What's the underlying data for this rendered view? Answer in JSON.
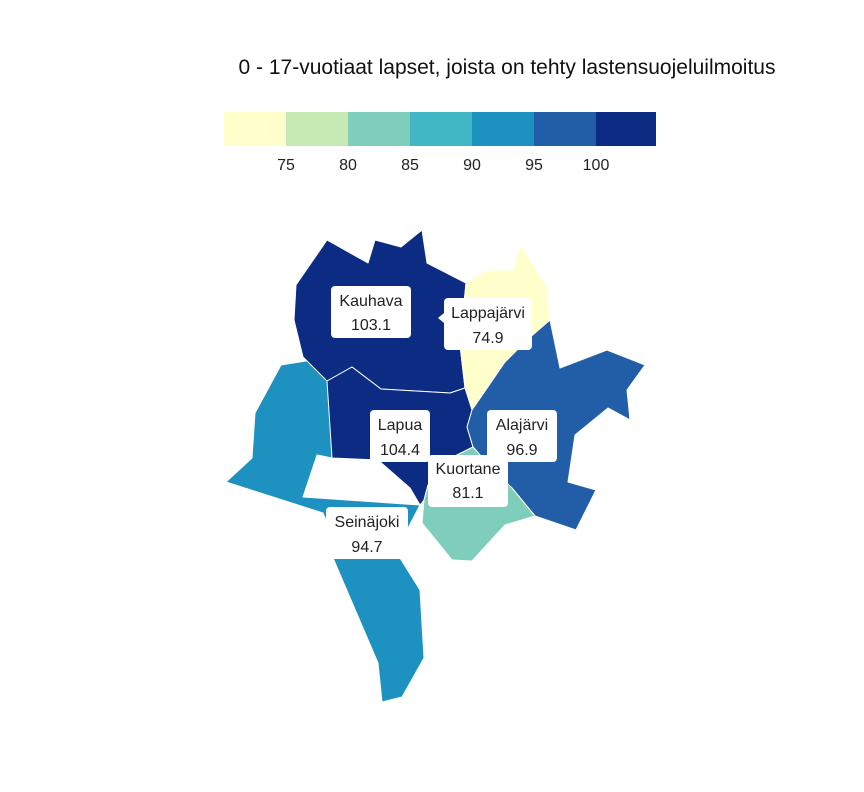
{
  "title": "0 - 17-vuotiaat lapset, joista on tehty lastensuojeluilmoitus",
  "legend": {
    "colors": [
      "#ffffcc",
      "#c7e9b4",
      "#7fcdbb",
      "#41b6c4",
      "#1d91c0",
      "#225ea8",
      "#0c2c84"
    ],
    "ticks": [
      "75",
      "80",
      "85",
      "90",
      "95",
      "100"
    ]
  },
  "regions": [
    {
      "name": "Kauhava",
      "value": "103.1",
      "color": "#0c2c84"
    },
    {
      "name": "Lappajärvi",
      "value": "74.9",
      "color": "#ffffcc"
    },
    {
      "name": "Alajärvi",
      "value": "96.9",
      "color": "#225ea8"
    },
    {
      "name": "Lapua",
      "value": "104.4",
      "color": "#0c2c84"
    },
    {
      "name": "Kuortane",
      "value": "81.1",
      "color": "#7fcdbb"
    },
    {
      "name": "Seinäjoki",
      "value": "94.7",
      "color": "#1d91c0"
    }
  ]
}
